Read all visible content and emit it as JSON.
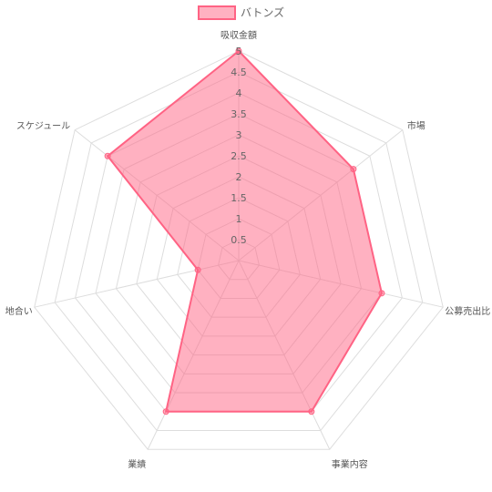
{
  "chart_data": {
    "type": "radar",
    "axes": [
      "吸収金額",
      "市場",
      "公募売出比",
      "事業内容",
      "業績",
      "地合い",
      "スケジュール"
    ],
    "series": [
      {
        "name": "バトンズ",
        "values": [
          5,
          3.5,
          3.5,
          4,
          4,
          1,
          4
        ],
        "color": "#ff6384",
        "fill": "rgba(255,99,132,0.5)"
      }
    ],
    "r_range": [
      0,
      5
    ],
    "ticks": [
      "0.5",
      "1",
      "1.5",
      "2",
      "2.5",
      "3",
      "3.5",
      "4",
      "4.5",
      "5"
    ],
    "legend_position": "top",
    "grid": true
  }
}
